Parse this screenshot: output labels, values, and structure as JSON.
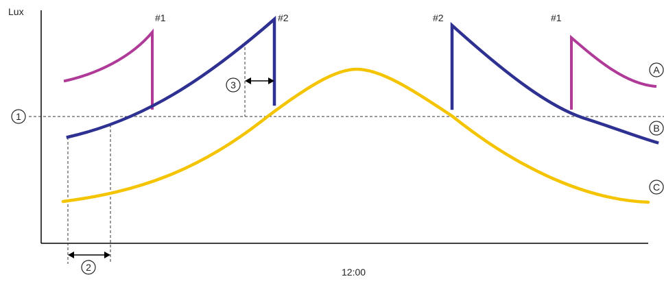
{
  "diagram": {
    "y_axis_label": "Lux",
    "time_label": "12:00",
    "markers": {
      "setpoint": "1",
      "delay": "2",
      "ramp": "3"
    },
    "sensor_labels": {
      "b_left": "#1",
      "a_left": "#2",
      "a_right": "#2",
      "b_right": "#1"
    },
    "curve_labels": {
      "a": "A",
      "b": "B",
      "c": "C"
    },
    "colors": {
      "curve_a": "#b03a97",
      "curve_b": "#2e3192",
      "curve_c": "#f5c400",
      "axis": "#000000",
      "guides": "#333333"
    }
  }
}
